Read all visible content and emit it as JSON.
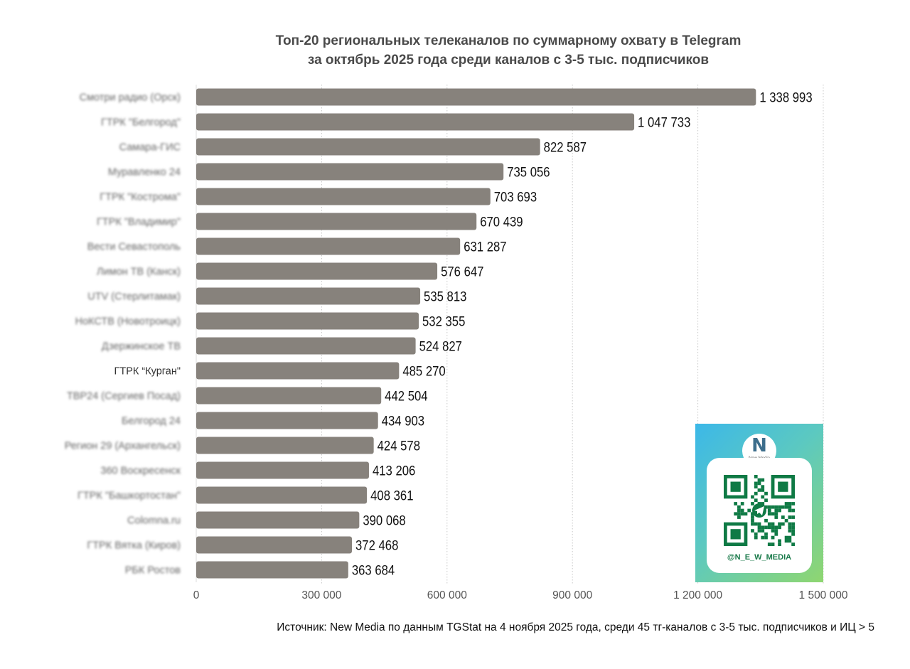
{
  "title_line1": "Топ-20 региональных телеканалов по суммарному охвату в Telegram",
  "title_line2": "за октябрь 2025 года среди каналов с 3-5 тыс. подписчиков",
  "source": "Источник: New Media по данным TGStat на 4 ноября 2025 года, среди 45 тг-каналов с 3-5 тыс. подписчиков и ИЦ > 5",
  "qr_card": {
    "brand": "New Media",
    "handle": "@N_E_W_MEDIA",
    "logo_icon": "n-logo-icon",
    "qr_icon": "telegram-qr-icon"
  },
  "chart_data": {
    "type": "bar",
    "orientation": "horizontal",
    "title": "Топ-20 региональных телеканалов по суммарному охвату в Telegram за октябрь 2025 года среди каналов с 3-5 тыс. подписчиков",
    "xlim": [
      0,
      1500000
    ],
    "xticks": [
      0,
      300000,
      600000,
      900000,
      1200000,
      1500000
    ],
    "xtick_labels": [
      "0",
      "300 000",
      "600 000",
      "900 000",
      "1 200 000",
      "1 500 000"
    ],
    "grid": "vertical-dotted",
    "bar_color": "#87827c",
    "categories": [
      "Смотри радио (Орск)",
      "ГТРК \"Белгород\"",
      "Самара-ГИС",
      "Муравленко 24",
      "ГТРК \"Кострома\"",
      "ГТРК \"Владимир\"",
      "Вести Севастополь",
      "Лимон ТВ (Канск)",
      "UTV (Стерлитамак)",
      "НоКСТВ (Новотроицк)",
      "Дзержинское ТВ",
      "ГТРК “Курган\"",
      "ТВР24 (Сергиев Посад)",
      "Белгород 24",
      "Регион 29 (Архангельск)",
      "360 Воскресенск",
      "ГТРК \"Башкортостан\"",
      "Colomna.ru",
      "ГТРК Вятка (Киров)",
      "РБК Ростов"
    ],
    "values": [
      1338993,
      1047733,
      822587,
      735056,
      703693,
      670439,
      631287,
      576647,
      535813,
      532355,
      524827,
      485270,
      442504,
      434903,
      424578,
      413206,
      408361,
      390068,
      372468,
      363684
    ],
    "value_labels": [
      "1 338 993",
      "1 047 733",
      "822 587",
      "735 056",
      "703 693",
      "670 439",
      "631 287",
      "576 647",
      "535 813",
      "532 355",
      "524 827",
      "485 270",
      "442 504",
      "434 903",
      "424 578",
      "413 206",
      "408 361",
      "390 068",
      "372 468",
      "363 684"
    ],
    "blurred_categories": true,
    "highlighted_category": "ГТРК “Курган\""
  }
}
